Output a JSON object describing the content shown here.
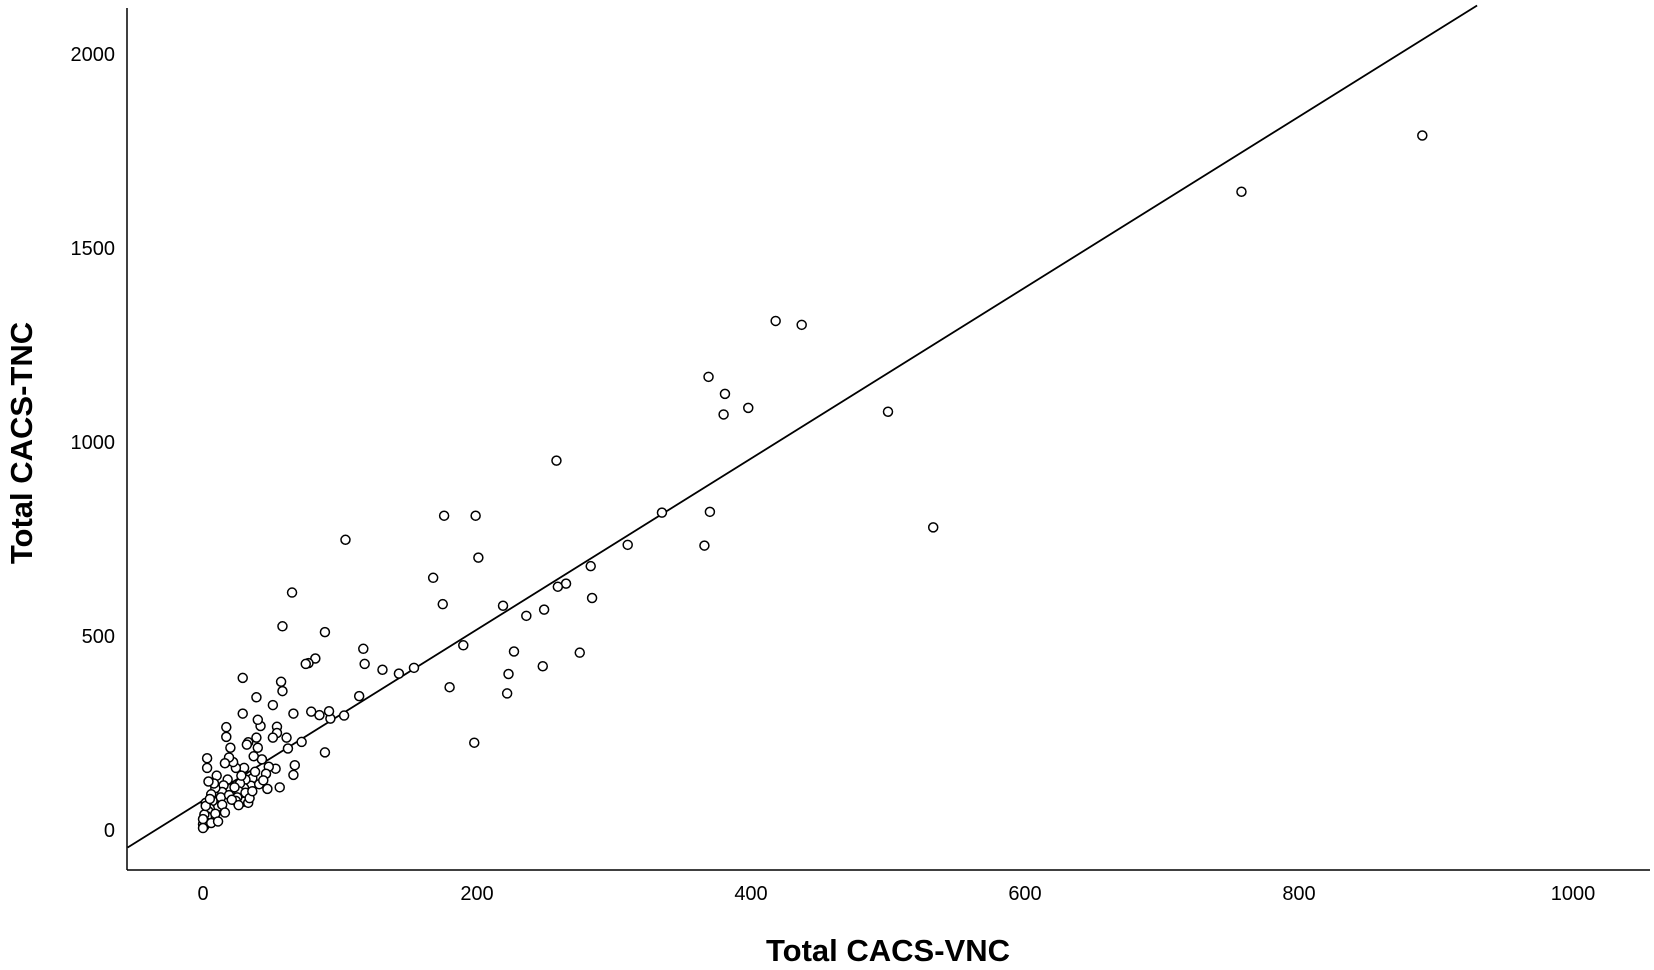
{
  "chart_data": {
    "type": "scatter",
    "title": "",
    "xlabel": "Total CACS-VNC",
    "ylabel": "Total CACS-TNC",
    "xlim": [
      -55,
      1060
    ],
    "ylim": [
      -100,
      2125
    ],
    "xticks": [
      0,
      200,
      400,
      600,
      800,
      1000
    ],
    "yticks": [
      0,
      500,
      1000,
      1500,
      2000
    ],
    "grid": false,
    "legend": "none",
    "marker_color": "#000000",
    "line_color": "#000000",
    "fit_line": {
      "x1": -55,
      "y1": -45,
      "x2": 930,
      "y2": 2125
    },
    "points": [
      [
        890,
        1790
      ],
      [
        758,
        1645
      ],
      [
        533,
        780
      ],
      [
        500,
        1078
      ],
      [
        437,
        1302
      ],
      [
        418,
        1312
      ],
      [
        398,
        1088
      ],
      [
        381,
        1124
      ],
      [
        380,
        1071
      ],
      [
        369,
        1168
      ],
      [
        370,
        820
      ],
      [
        366,
        733
      ],
      [
        335,
        818
      ],
      [
        310,
        735
      ],
      [
        284,
        598
      ],
      [
        283,
        680
      ],
      [
        275,
        457
      ],
      [
        265,
        635
      ],
      [
        259,
        627
      ],
      [
        258,
        952
      ],
      [
        249,
        568
      ],
      [
        248,
        422
      ],
      [
        236,
        552
      ],
      [
        227,
        460
      ],
      [
        223,
        402
      ],
      [
        222,
        352
      ],
      [
        219,
        578
      ],
      [
        201,
        702
      ],
      [
        199,
        810
      ],
      [
        198,
        225
      ],
      [
        190,
        476
      ],
      [
        180,
        368
      ],
      [
        176,
        810
      ],
      [
        175,
        582
      ],
      [
        168,
        650
      ],
      [
        154,
        418
      ],
      [
        143,
        403
      ],
      [
        131,
        413
      ],
      [
        118,
        428
      ],
      [
        117,
        467
      ],
      [
        114,
        345
      ],
      [
        103,
        295
      ],
      [
        104,
        748
      ],
      [
        93,
        287
      ],
      [
        92,
        306
      ],
      [
        89,
        510
      ],
      [
        89,
        200
      ],
      [
        85,
        296
      ],
      [
        82,
        442
      ],
      [
        77,
        430
      ],
      [
        75,
        428
      ],
      [
        79,
        305
      ],
      [
        65,
        612
      ],
      [
        66,
        300
      ],
      [
        67,
        167
      ],
      [
        66,
        142
      ],
      [
        72,
        227
      ],
      [
        58,
        358
      ],
      [
        57,
        382
      ],
      [
        58,
        525
      ],
      [
        61,
        238
      ],
      [
        62,
        210
      ],
      [
        56,
        110
      ],
      [
        54,
        266
      ],
      [
        54,
        250
      ],
      [
        51,
        322
      ],
      [
        53,
        158
      ],
      [
        51,
        238
      ],
      [
        47,
        106
      ],
      [
        48,
        163
      ],
      [
        46,
        145
      ],
      [
        42,
        268
      ],
      [
        43,
        182
      ],
      [
        39,
        342
      ],
      [
        40,
        284
      ],
      [
        40,
        212
      ],
      [
        39,
        238
      ],
      [
        37,
        190
      ],
      [
        36,
        133
      ],
      [
        35,
        114
      ],
      [
        33,
        226
      ],
      [
        32,
        220
      ],
      [
        31,
        130
      ],
      [
        30,
        160
      ],
      [
        29,
        300
      ],
      [
        29,
        392
      ],
      [
        30,
        108
      ],
      [
        28,
        94
      ],
      [
        30,
        73
      ],
      [
        33,
        70
      ],
      [
        27,
        120
      ],
      [
        26,
        100
      ],
      [
        25,
        84
      ],
      [
        24,
        75
      ],
      [
        24,
        160
      ],
      [
        22,
        175
      ],
      [
        20,
        212
      ],
      [
        19,
        187
      ],
      [
        18,
        130
      ],
      [
        17,
        265
      ],
      [
        17,
        240
      ],
      [
        16,
        172
      ],
      [
        15,
        115
      ],
      [
        14,
        98
      ],
      [
        13,
        84
      ],
      [
        12,
        52
      ],
      [
        11,
        60
      ],
      [
        10,
        140
      ],
      [
        9,
        108
      ],
      [
        8,
        120
      ],
      [
        7,
        30
      ],
      [
        7,
        75
      ],
      [
        6,
        92
      ],
      [
        5,
        55
      ],
      [
        4,
        48
      ],
      [
        4,
        125
      ],
      [
        3,
        185
      ],
      [
        3,
        160
      ],
      [
        3,
        35
      ],
      [
        2,
        20
      ],
      [
        2,
        70
      ],
      [
        1,
        10
      ],
      [
        1,
        40
      ],
      [
        0,
        15
      ],
      [
        0,
        28
      ],
      [
        0,
        5
      ],
      [
        6,
        18
      ],
      [
        9,
        42
      ],
      [
        11,
        22
      ],
      [
        14,
        65
      ],
      [
        16,
        45
      ],
      [
        19,
        90
      ],
      [
        21,
        78
      ],
      [
        23,
        110
      ],
      [
        26,
        64
      ],
      [
        28,
        140
      ],
      [
        31,
        96
      ],
      [
        34,
        82
      ],
      [
        36,
        100
      ],
      [
        38,
        150
      ],
      [
        41,
        118
      ],
      [
        44,
        128
      ],
      [
        2,
        62
      ],
      [
        5,
        80
      ]
    ]
  }
}
